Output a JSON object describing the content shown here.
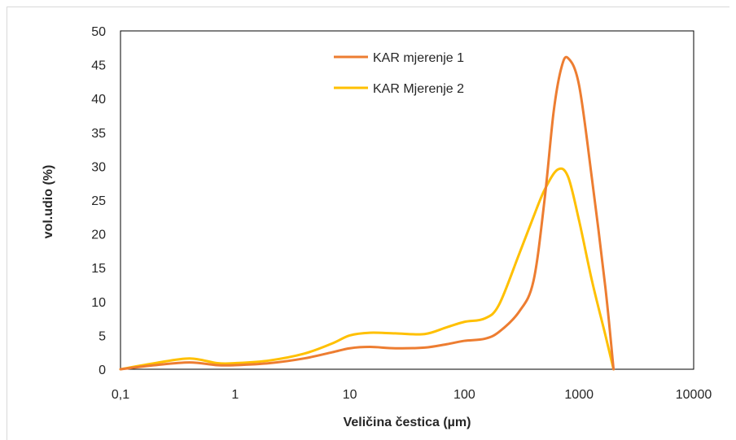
{
  "chart_data": {
    "type": "line",
    "xlabel": "Veličina čestica (µm)",
    "ylabel": "vol.udio (%)",
    "x_scale": "log",
    "xlim": [
      0.1,
      10000
    ],
    "ylim": [
      0,
      50
    ],
    "x_ticks": [
      0.1,
      1,
      10,
      100,
      1000,
      10000
    ],
    "x_tick_labels": [
      "0,1",
      "1",
      "10",
      "100",
      "1000",
      "10000"
    ],
    "y_ticks": [
      0,
      5,
      10,
      15,
      20,
      25,
      30,
      35,
      40,
      45,
      50
    ],
    "y_tick_labels": [
      "0",
      "5",
      "10",
      "15",
      "20",
      "25",
      "30",
      "35",
      "40",
      "45",
      "50"
    ],
    "grid": false,
    "legend_position": "top-center",
    "series": [
      {
        "name": "KAR mjerenje 1",
        "color": "#ED7D31",
        "x": [
          0.1,
          0.2,
          0.4,
          0.7,
          1,
          2,
          4,
          7,
          10,
          15,
          25,
          45,
          70,
          100,
          150,
          200,
          300,
          400,
          500,
          600,
          700,
          800,
          1000,
          1300,
          1700,
          2000
        ],
        "y": [
          0,
          0.6,
          1.0,
          0.6,
          0.6,
          0.9,
          1.6,
          2.5,
          3.1,
          3.3,
          3.1,
          3.2,
          3.7,
          4.2,
          4.5,
          5.5,
          8.5,
          13,
          25,
          38,
          44.5,
          46,
          42,
          28,
          12,
          0
        ]
      },
      {
        "name": "KAR Mjerenje 2",
        "color": "#FFC000",
        "x": [
          0.1,
          0.2,
          0.4,
          0.7,
          1,
          2,
          4,
          7,
          10,
          15,
          25,
          45,
          70,
          100,
          150,
          200,
          300,
          400,
          500,
          650,
          800,
          1000,
          1300,
          1700,
          2000
        ],
        "y": [
          0,
          0.9,
          1.6,
          0.9,
          0.9,
          1.3,
          2.3,
          3.8,
          5.0,
          5.4,
          5.3,
          5.2,
          6.2,
          7.0,
          7.5,
          9.5,
          17,
          22.5,
          26.5,
          29.5,
          28.5,
          22,
          13,
          5,
          0
        ]
      }
    ]
  }
}
